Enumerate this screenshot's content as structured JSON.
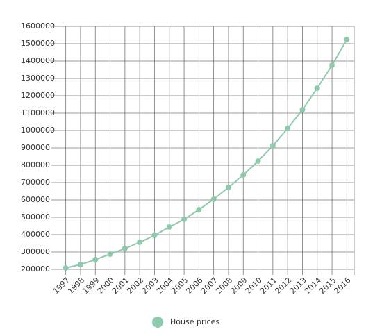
{
  "chart_data": {
    "type": "line",
    "categories": [
      "1997",
      "1998",
      "1999",
      "2000",
      "2001",
      "2002",
      "2003",
      "2004",
      "2005",
      "2006",
      "2007",
      "2008",
      "2009",
      "2010",
      "2011",
      "2012",
      "2013",
      "2014",
      "2015",
      "2016"
    ],
    "series": [
      {
        "name": "House prices",
        "color": "#8fc9ab",
        "values": [
          208000,
          228000,
          256000,
          288000,
          320000,
          356000,
          396000,
          444000,
          488000,
          544000,
          604000,
          672000,
          744000,
          824000,
          912000,
          1012000,
          1120000,
          1244000,
          1376000,
          1524000
        ]
      }
    ],
    "ylim": [
      200000,
      1600000
    ],
    "yticks": [
      200000,
      300000,
      400000,
      500000,
      600000,
      700000,
      800000,
      900000,
      1000000,
      1100000,
      1200000,
      1300000,
      1400000,
      1500000,
      1600000
    ],
    "grid": true
  }
}
